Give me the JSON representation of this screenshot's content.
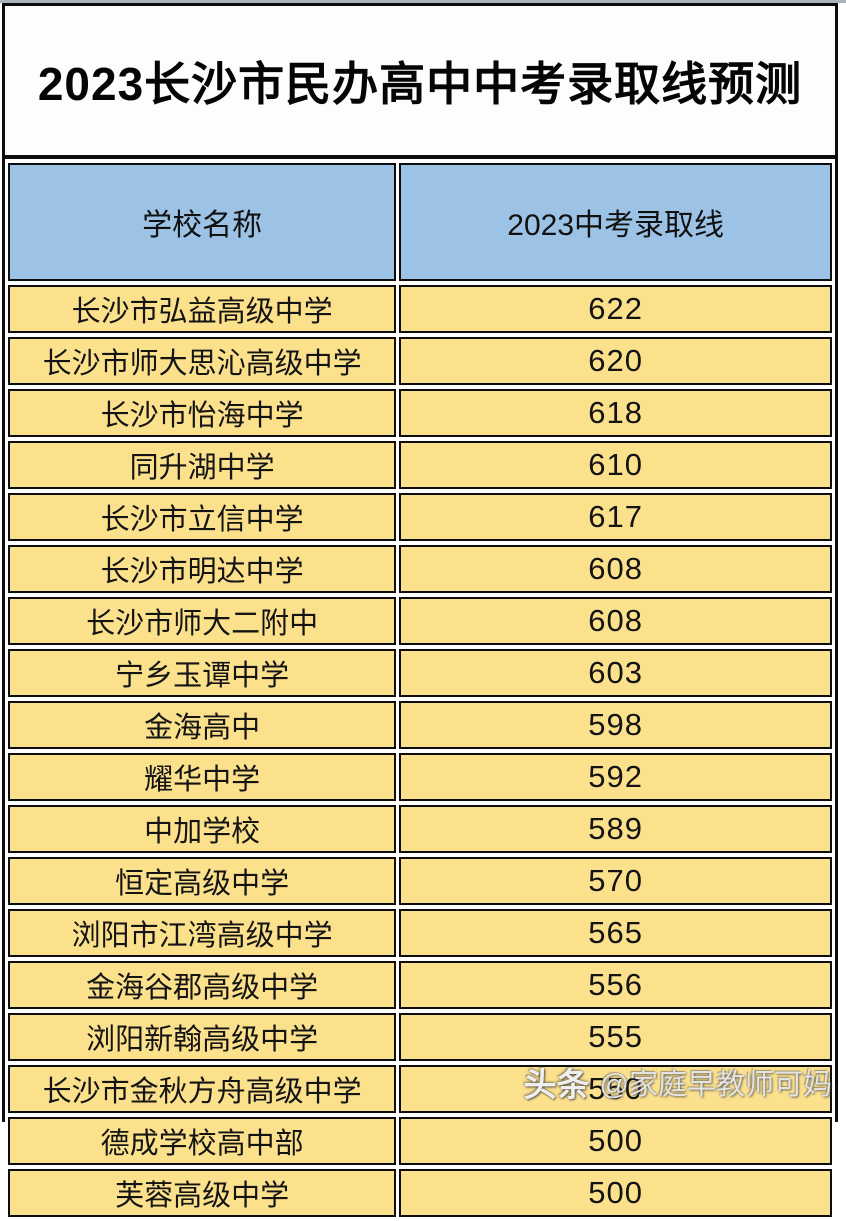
{
  "page": {
    "title": "2023长沙市民办高中中考录取线预测"
  },
  "chart_data": {
    "type": "table",
    "title": "2023长沙市民办高中中考录取线预测",
    "columns": [
      "学校名称",
      "2023中考录取线"
    ],
    "rows": [
      [
        "长沙市弘益高级中学",
        622
      ],
      [
        "长沙市师大思沁高级中学",
        620
      ],
      [
        "长沙市怡海中学",
        618
      ],
      [
        "同升湖中学",
        610
      ],
      [
        "长沙市立信中学",
        617
      ],
      [
        "长沙市明达中学",
        608
      ],
      [
        "长沙市师大二附中",
        608
      ],
      [
        "宁乡玉谭中学",
        603
      ],
      [
        "金海高中",
        598
      ],
      [
        "耀华中学",
        592
      ],
      [
        "中加学校",
        589
      ],
      [
        "恒定高级中学",
        570
      ],
      [
        "浏阳市江湾高级中学",
        565
      ],
      [
        "金海谷郡高级中学",
        556
      ],
      [
        "浏阳新翰高级中学",
        555
      ],
      [
        "长沙市金秋方舟高级中学",
        550
      ],
      [
        "德成学校高中部",
        500
      ],
      [
        "芙蓉高级中学",
        500
      ]
    ]
  },
  "watermark": {
    "brand": "头条",
    "handle": "@家庭早教师可妈"
  },
  "colors": {
    "header_bg": "#9cc3e6",
    "row_bg": "#fce18d",
    "border": "#0d0d0d",
    "title_bg": "#fdfdfe",
    "top_strip": "#a9b4ba"
  }
}
